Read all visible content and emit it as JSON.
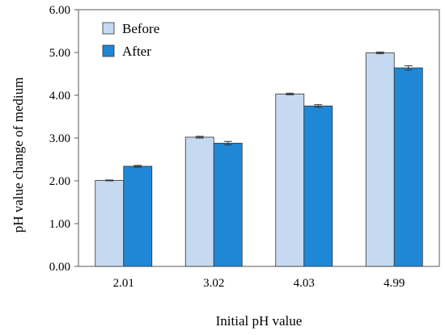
{
  "chart_data": {
    "type": "bar",
    "xlabel": "Initial pH value",
    "ylabel": "pH value change of medium",
    "categories": [
      "2.01",
      "3.02",
      "4.03",
      "4.99"
    ],
    "ylim": [
      0,
      6
    ],
    "yticks": [
      "0.00",
      "1.00",
      "2.00",
      "3.00",
      "4.00",
      "5.00",
      "6.00"
    ],
    "grid": false,
    "legend_position": "top-left",
    "series": [
      {
        "name": "Before",
        "values": [
          2.01,
          3.02,
          4.03,
          4.99
        ],
        "errors": [
          0.01,
          0.02,
          0.02,
          0.02
        ],
        "color": "#c5daf1"
      },
      {
        "name": "After",
        "values": [
          2.34,
          2.88,
          3.75,
          4.64
        ],
        "errors": [
          0.02,
          0.04,
          0.03,
          0.05
        ],
        "color": "#1f88d6"
      }
    ]
  }
}
